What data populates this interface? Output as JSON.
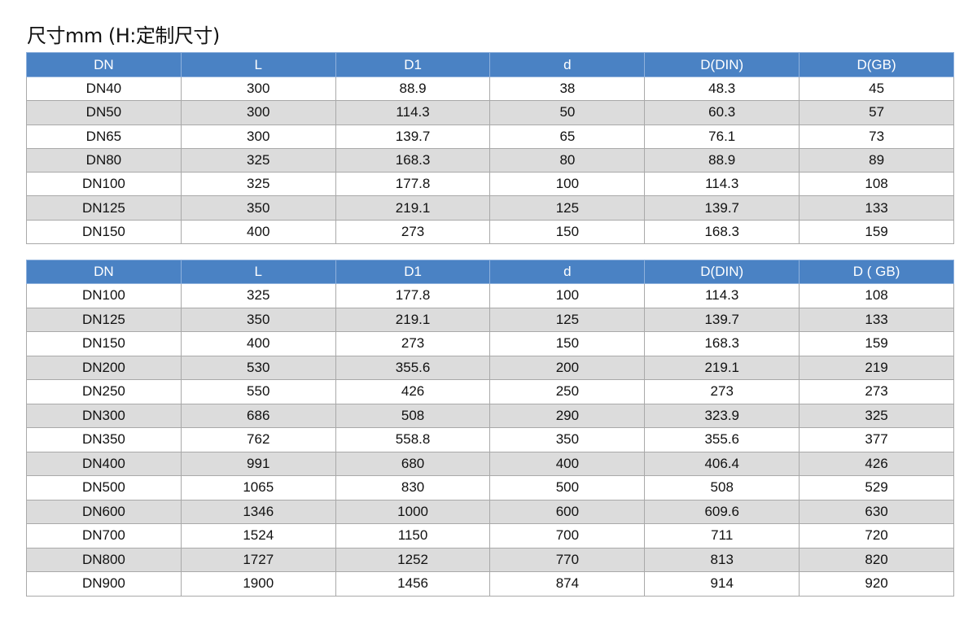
{
  "title": "尺寸mm (H:定制尺寸)",
  "colors": {
    "header_bg": "#4a82c4",
    "alt_row_bg": "#dcdcdc"
  },
  "table1": {
    "headers": [
      "DN",
      "L",
      "D1",
      "d",
      "D(DIN)",
      "D(GB)"
    ],
    "rows": [
      [
        "DN40",
        "300",
        "88.9",
        "38",
        "48.3",
        "45"
      ],
      [
        "DN50",
        "300",
        "114.3",
        "50",
        "60.3",
        "57"
      ],
      [
        "DN65",
        "300",
        "139.7",
        "65",
        "76.1",
        "73"
      ],
      [
        "DN80",
        "325",
        "168.3",
        "80",
        "88.9",
        "89"
      ],
      [
        "DN100",
        "325",
        "177.8",
        "100",
        "114.3",
        "108"
      ],
      [
        "DN125",
        "350",
        "219.1",
        "125",
        "139.7",
        "133"
      ],
      [
        "DN150",
        "400",
        "273",
        "150",
        "168.3",
        "159"
      ]
    ]
  },
  "table2": {
    "headers": [
      "DN",
      "L",
      "D1",
      "d",
      "D(DIN)",
      "D ( GB)"
    ],
    "rows": [
      [
        "DN100",
        "325",
        "177.8",
        "100",
        "114.3",
        "108"
      ],
      [
        "DN125",
        "350",
        "219.1",
        "125",
        "139.7",
        "133"
      ],
      [
        "DN150",
        "400",
        "273",
        "150",
        "168.3",
        "159"
      ],
      [
        "DN200",
        "530",
        "355.6",
        "200",
        "219.1",
        "219"
      ],
      [
        "DN250",
        "550",
        "426",
        "250",
        "273",
        "273"
      ],
      [
        "DN300",
        "686",
        "508",
        "290",
        "323.9",
        "325"
      ],
      [
        "DN350",
        "762",
        "558.8",
        "350",
        "355.6",
        "377"
      ],
      [
        "DN400",
        "991",
        "680",
        "400",
        "406.4",
        "426"
      ],
      [
        "DN500",
        "1065",
        "830",
        "500",
        "508",
        "529"
      ],
      [
        "DN600",
        "1346",
        "1000",
        "600",
        "609.6",
        "630"
      ],
      [
        "DN700",
        "1524",
        "1150",
        "700",
        "711",
        "720"
      ],
      [
        "DN800",
        "1727",
        "1252",
        "770",
        "813",
        "820"
      ],
      [
        "DN900",
        "1900",
        "1456",
        "874",
        "914",
        "920"
      ]
    ]
  }
}
